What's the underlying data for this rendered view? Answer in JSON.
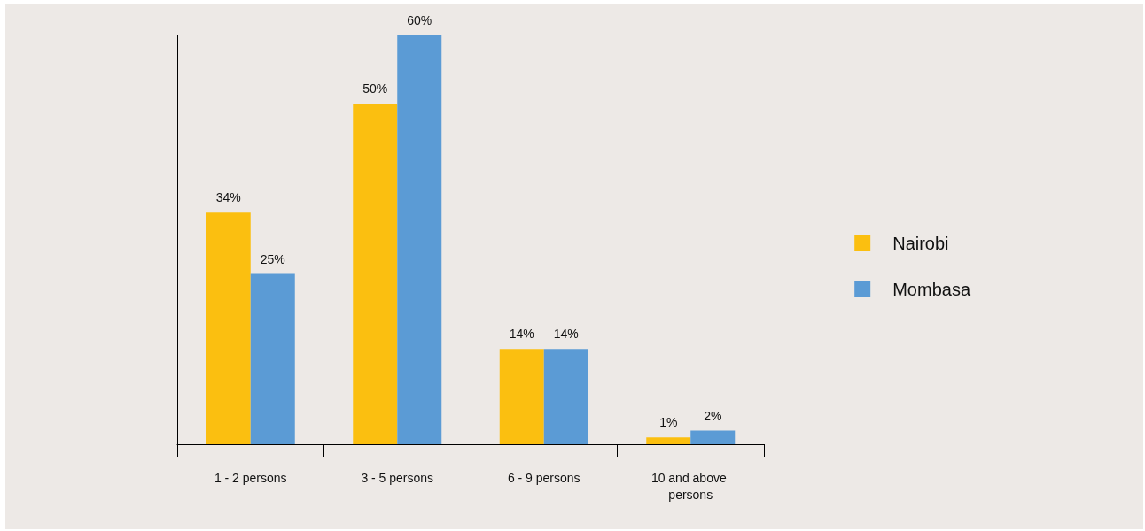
{
  "chart_data": {
    "type": "bar",
    "categories": [
      "1 - 2 persons",
      "3 - 5 persons",
      "6 - 9 persons",
      "10 and above persons"
    ],
    "series": [
      {
        "name": "Nairobi",
        "color": "#fbbf10",
        "values": [
          34,
          50,
          14,
          1
        ],
        "value_labels": [
          "34%",
          "50%",
          "14%",
          "1%"
        ]
      },
      {
        "name": "Mombasa",
        "color": "#5b9bd5",
        "values": [
          25,
          60,
          14,
          2
        ],
        "value_labels": [
          "25%",
          "60%",
          "14%",
          "2%"
        ]
      }
    ],
    "legend": "right",
    "grid": false,
    "tick_labels": "x"
  }
}
